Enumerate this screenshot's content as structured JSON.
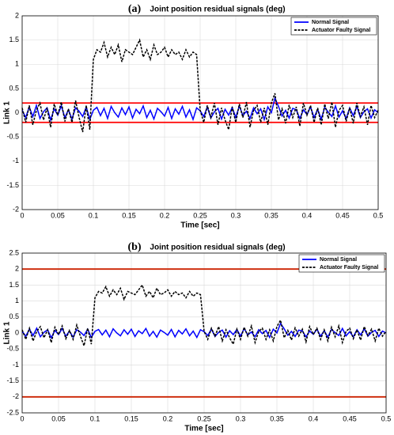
{
  "chart_data": [
    {
      "type": "line",
      "panel_label": "(a)",
      "title": "Joint position residual signals (deg)",
      "xlabel": "Time [sec]",
      "ylabel": "Link 1",
      "xlim": [
        0,
        0.5
      ],
      "ylim": [
        -2,
        2
      ],
      "xticks": [
        0,
        0.05,
        0.1,
        0.15,
        0.2,
        0.25,
        0.3,
        0.35,
        0.4,
        0.45,
        0.5
      ],
      "yticks": [
        -2,
        -1.5,
        -1,
        -0.5,
        0,
        0.5,
        1,
        1.5,
        2
      ],
      "grid": true,
      "legend": "upper right",
      "thresholds": [
        0.2,
        -0.2
      ],
      "threshold_color": "#ff0000",
      "x": [
        0,
        0.005,
        0.01,
        0.015,
        0.02,
        0.025,
        0.03,
        0.035,
        0.04,
        0.045,
        0.05,
        0.055,
        0.06,
        0.065,
        0.07,
        0.075,
        0.08,
        0.085,
        0.09,
        0.095,
        0.1,
        0.105,
        0.11,
        0.115,
        0.12,
        0.125,
        0.13,
        0.135,
        0.14,
        0.145,
        0.15,
        0.155,
        0.16,
        0.165,
        0.17,
        0.175,
        0.18,
        0.185,
        0.19,
        0.195,
        0.2,
        0.205,
        0.21,
        0.215,
        0.22,
        0.225,
        0.23,
        0.235,
        0.24,
        0.245,
        0.25,
        0.255,
        0.26,
        0.265,
        0.27,
        0.275,
        0.28,
        0.285,
        0.29,
        0.295,
        0.3,
        0.305,
        0.31,
        0.315,
        0.32,
        0.325,
        0.33,
        0.335,
        0.34,
        0.345,
        0.35,
        0.355,
        0.36,
        0.365,
        0.37,
        0.375,
        0.38,
        0.385,
        0.39,
        0.395,
        0.4,
        0.405,
        0.41,
        0.415,
        0.42,
        0.425,
        0.43,
        0.435,
        0.44,
        0.445,
        0.45,
        0.455,
        0.46,
        0.465,
        0.47,
        0.475,
        0.48,
        0.485,
        0.49,
        0.495,
        0.5
      ],
      "series": [
        {
          "name": "Normal Signal",
          "color": "#0000ff",
          "style": "solid",
          "values": [
            0.05,
            -0.1,
            0.12,
            -0.08,
            0.15,
            -0.12,
            0.02,
            0.1,
            -0.15,
            0.08,
            -0.05,
            0.14,
            -0.1,
            0.06,
            -0.13,
            0.1,
            0.03,
            -0.08,
            0.12,
            -0.14,
            0.05,
            0.11,
            -0.06,
            0.09,
            -0.12,
            0.13,
            0.0,
            -0.09,
            0.1,
            -0.04,
            0.12,
            -0.11,
            0.07,
            -0.02,
            0.14,
            -0.1,
            0.05,
            -0.13,
            0.09,
            0.02,
            -0.07,
            0.11,
            -0.12,
            0.08,
            -0.03,
            0.13,
            -0.09,
            0.06,
            -0.14,
            0.1,
            0.04,
            -0.08,
            0.12,
            -0.11,
            0.02,
            0.09,
            -0.13,
            0.07,
            -0.05,
            0.11,
            -0.1,
            0.14,
            -0.06,
            0.03,
            -0.12,
            0.1,
            -0.02,
            0.08,
            -0.14,
            0.12,
            0.0,
            0.3,
            0.13,
            -0.07,
            0.05,
            -0.11,
            0.09,
            0.06,
            -0.12,
            0.06,
            -0.04,
            0.12,
            -0.1,
            0.07,
            -0.13,
            0.11,
            0.01,
            -0.08,
            0.14,
            -0.09,
            0.04,
            -0.12,
            0.1,
            -0.06,
            0.13,
            -0.1,
            0.02,
            0.08,
            -0.11,
            0.06,
            0.0
          ]
        },
        {
          "name": "Actuator Faulty Signal",
          "color": "#000000",
          "style": "dashed",
          "values": [
            0.1,
            -0.2,
            0.15,
            -0.25,
            0.05,
            0.2,
            -0.15,
            0.1,
            -0.3,
            0.18,
            -0.05,
            0.22,
            -0.18,
            0.08,
            -0.2,
            0.25,
            -0.1,
            -0.4,
            0.15,
            -0.35,
            1.1,
            1.3,
            1.25,
            1.45,
            1.15,
            1.35,
            1.2,
            1.4,
            1.05,
            1.3,
            1.25,
            1.2,
            1.35,
            1.5,
            1.15,
            1.3,
            1.1,
            1.4,
            1.2,
            1.25,
            1.35,
            1.15,
            1.3,
            1.2,
            1.25,
            1.1,
            1.3,
            1.15,
            1.25,
            1.2,
            0.05,
            -0.2,
            0.15,
            -0.1,
            0.2,
            -0.25,
            0.1,
            -0.15,
            -0.35,
            0.12,
            -0.2,
            0.18,
            -0.1,
            0.22,
            -0.3,
            0.05,
            0.15,
            -0.2,
            0.1,
            -0.25,
            0.2,
            0.4,
            -0.15,
            0.08,
            -0.22,
            0.16,
            -0.1,
            0.12,
            -0.28,
            0.2,
            -0.05,
            0.15,
            -0.2,
            0.1,
            -0.25,
            0.18,
            -0.12,
            0.22,
            -0.3,
            0.05,
            0.15,
            -0.18,
            0.1,
            -0.22,
            0.2,
            -0.08,
            0.12,
            -0.25,
            0.15,
            -0.1,
            0.05
          ]
        }
      ]
    },
    {
      "type": "line",
      "panel_label": "(b)",
      "title": "Joint position residual signals (deg)",
      "xlabel": "Time [sec]",
      "ylabel": "Link 1",
      "xlim": [
        0,
        0.5
      ],
      "ylim": [
        -2.5,
        2.5
      ],
      "xticks": [
        0,
        0.05,
        0.1,
        0.15,
        0.2,
        0.25,
        0.3,
        0.35,
        0.4,
        0.45,
        0.5
      ],
      "yticks": [
        -2.5,
        -2,
        -1.5,
        -1,
        -0.5,
        0,
        0.5,
        1,
        1.5,
        2,
        2.5
      ],
      "grid": true,
      "legend": "upper right",
      "thresholds": [
        2,
        -2
      ],
      "threshold_color": "#cc2200",
      "x": [
        0,
        0.005,
        0.01,
        0.015,
        0.02,
        0.025,
        0.03,
        0.035,
        0.04,
        0.045,
        0.05,
        0.055,
        0.06,
        0.065,
        0.07,
        0.075,
        0.08,
        0.085,
        0.09,
        0.095,
        0.1,
        0.105,
        0.11,
        0.115,
        0.12,
        0.125,
        0.13,
        0.135,
        0.14,
        0.145,
        0.15,
        0.155,
        0.16,
        0.165,
        0.17,
        0.175,
        0.18,
        0.185,
        0.19,
        0.195,
        0.2,
        0.205,
        0.21,
        0.215,
        0.22,
        0.225,
        0.23,
        0.235,
        0.24,
        0.245,
        0.25,
        0.255,
        0.26,
        0.265,
        0.27,
        0.275,
        0.28,
        0.285,
        0.29,
        0.295,
        0.3,
        0.305,
        0.31,
        0.315,
        0.32,
        0.325,
        0.33,
        0.335,
        0.34,
        0.345,
        0.35,
        0.355,
        0.36,
        0.365,
        0.37,
        0.375,
        0.38,
        0.385,
        0.39,
        0.395,
        0.4,
        0.405,
        0.41,
        0.415,
        0.42,
        0.425,
        0.43,
        0.435,
        0.44,
        0.445,
        0.45,
        0.455,
        0.46,
        0.465,
        0.47,
        0.475,
        0.48,
        0.485,
        0.49,
        0.495,
        0.5
      ],
      "series": [
        {
          "name": "Normal Signal",
          "color": "#0000ff",
          "style": "solid",
          "values": [
            0.05,
            -0.1,
            0.12,
            -0.08,
            0.15,
            -0.12,
            0.02,
            0.1,
            -0.15,
            0.08,
            -0.05,
            0.14,
            -0.1,
            0.06,
            -0.13,
            0.1,
            0.03,
            -0.08,
            0.12,
            -0.14,
            0.05,
            0.11,
            -0.06,
            0.09,
            -0.12,
            0.13,
            0.0,
            -0.09,
            0.1,
            -0.04,
            0.12,
            -0.11,
            0.07,
            -0.02,
            0.14,
            -0.1,
            0.05,
            -0.13,
            0.09,
            0.02,
            -0.07,
            0.11,
            -0.12,
            0.08,
            -0.03,
            0.13,
            -0.09,
            0.06,
            -0.14,
            0.1,
            0.04,
            -0.08,
            0.12,
            -0.11,
            0.02,
            0.09,
            -0.13,
            0.07,
            -0.05,
            0.11,
            -0.1,
            0.14,
            -0.06,
            0.03,
            -0.12,
            0.1,
            -0.02,
            0.08,
            -0.14,
            0.12,
            0.0,
            0.3,
            0.13,
            -0.07,
            0.05,
            -0.11,
            0.09,
            0.06,
            -0.12,
            0.06,
            -0.04,
            0.12,
            -0.1,
            0.07,
            -0.13,
            0.11,
            0.01,
            -0.08,
            0.14,
            -0.09,
            0.04,
            -0.12,
            0.1,
            -0.06,
            0.13,
            -0.1,
            0.02,
            0.08,
            -0.11,
            0.06,
            0.0
          ]
        },
        {
          "name": "Actuator Faulty Signal",
          "color": "#000000",
          "style": "dashed",
          "values": [
            0.1,
            -0.2,
            0.15,
            -0.25,
            0.05,
            0.2,
            -0.15,
            0.1,
            -0.3,
            0.18,
            -0.05,
            0.22,
            -0.18,
            0.08,
            -0.2,
            0.25,
            -0.1,
            -0.4,
            0.15,
            -0.35,
            1.1,
            1.3,
            1.25,
            1.45,
            1.15,
            1.35,
            1.2,
            1.4,
            1.05,
            1.3,
            1.25,
            1.2,
            1.35,
            1.5,
            1.15,
            1.3,
            1.1,
            1.4,
            1.2,
            1.25,
            1.35,
            1.15,
            1.3,
            1.2,
            1.25,
            1.1,
            1.3,
            1.15,
            1.25,
            1.2,
            0.05,
            -0.2,
            0.15,
            -0.1,
            0.2,
            -0.25,
            0.1,
            -0.15,
            -0.35,
            0.12,
            -0.2,
            0.18,
            -0.1,
            0.22,
            -0.3,
            0.05,
            0.15,
            -0.2,
            0.1,
            -0.25,
            0.2,
            0.4,
            -0.15,
            0.08,
            -0.22,
            0.16,
            -0.1,
            0.12,
            -0.28,
            0.2,
            -0.05,
            0.15,
            -0.2,
            0.1,
            -0.25,
            0.18,
            -0.12,
            0.22,
            -0.3,
            0.05,
            0.15,
            -0.18,
            0.1,
            -0.22,
            0.2,
            -0.08,
            0.12,
            -0.25,
            0.15,
            -0.1,
            0.05
          ]
        }
      ]
    }
  ]
}
